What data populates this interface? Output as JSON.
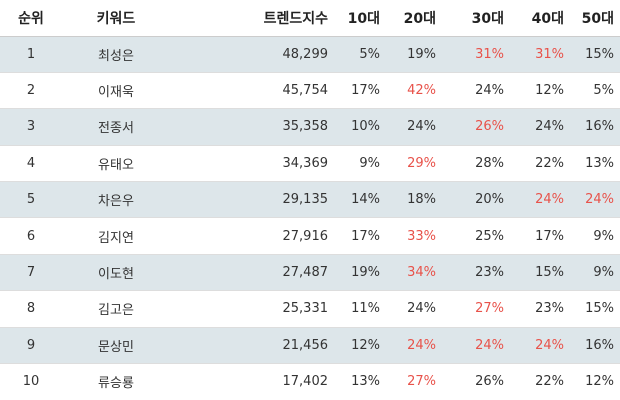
{
  "headers": [
    "순위",
    "키워드",
    "트렌드지수",
    "10대",
    "20대",
    "30대",
    "40대",
    "50대"
  ],
  "highlight_color": "#e8524a",
  "stripe_color": "#dde6ea",
  "rows": [
    {
      "rank": "1",
      "keyword": "최성은",
      "index": "48,299",
      "a10": "5%",
      "a20": "19%",
      "a30": "31%",
      "a40": "31%",
      "a50": "15%",
      "hl": [
        "a30",
        "a40"
      ]
    },
    {
      "rank": "2",
      "keyword": "이재욱",
      "index": "45,754",
      "a10": "17%",
      "a20": "42%",
      "a30": "24%",
      "a40": "12%",
      "a50": "5%",
      "hl": [
        "a20"
      ]
    },
    {
      "rank": "3",
      "keyword": "전종서",
      "index": "35,358",
      "a10": "10%",
      "a20": "24%",
      "a30": "26%",
      "a40": "24%",
      "a50": "16%",
      "hl": [
        "a30"
      ]
    },
    {
      "rank": "4",
      "keyword": "유태오",
      "index": "34,369",
      "a10": "9%",
      "a20": "29%",
      "a30": "28%",
      "a40": "22%",
      "a50": "13%",
      "hl": [
        "a20"
      ]
    },
    {
      "rank": "5",
      "keyword": "차은우",
      "index": "29,135",
      "a10": "14%",
      "a20": "18%",
      "a30": "20%",
      "a40": "24%",
      "a50": "24%",
      "hl": [
        "a40",
        "a50"
      ]
    },
    {
      "rank": "6",
      "keyword": "김지연",
      "index": "27,916",
      "a10": "17%",
      "a20": "33%",
      "a30": "25%",
      "a40": "17%",
      "a50": "9%",
      "hl": [
        "a20"
      ]
    },
    {
      "rank": "7",
      "keyword": "이도현",
      "index": "27,487",
      "a10": "19%",
      "a20": "34%",
      "a30": "23%",
      "a40": "15%",
      "a50": "9%",
      "hl": [
        "a20"
      ]
    },
    {
      "rank": "8",
      "keyword": "김고은",
      "index": "25,331",
      "a10": "11%",
      "a20": "24%",
      "a30": "27%",
      "a40": "23%",
      "a50": "15%",
      "hl": [
        "a30"
      ]
    },
    {
      "rank": "9",
      "keyword": "문상민",
      "index": "21,456",
      "a10": "12%",
      "a20": "24%",
      "a30": "24%",
      "a40": "24%",
      "a50": "16%",
      "hl": [
        "a20",
        "a30",
        "a40"
      ]
    },
    {
      "rank": "10",
      "keyword": "류승룡",
      "index": "17,402",
      "a10": "13%",
      "a20": "27%",
      "a30": "26%",
      "a40": "22%",
      "a50": "12%",
      "hl": [
        "a20"
      ]
    }
  ]
}
